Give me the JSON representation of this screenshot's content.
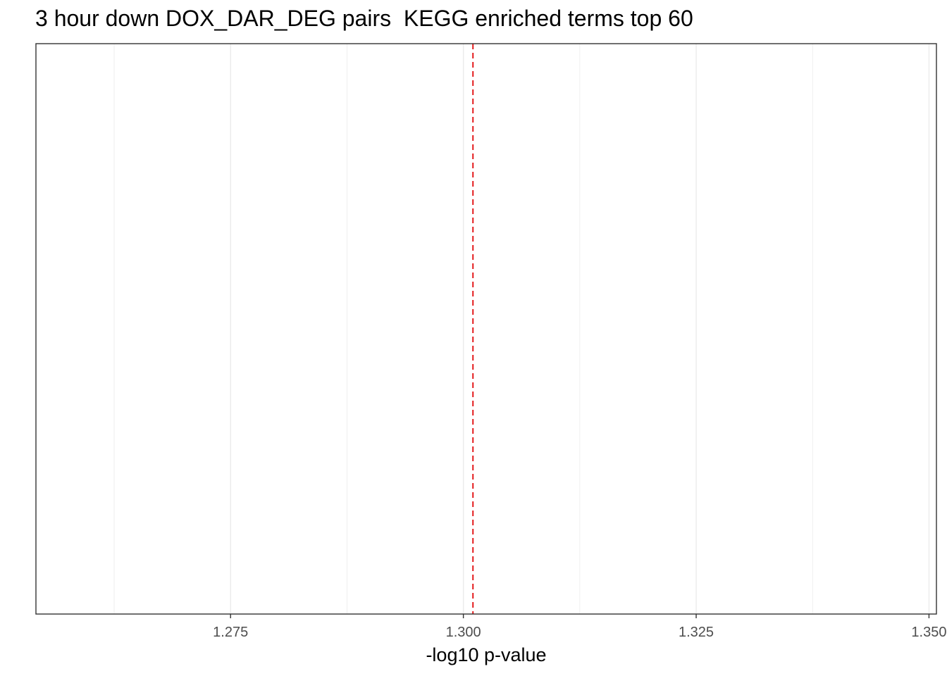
{
  "chart_data": {
    "type": "bar",
    "title": "3 hour down DOX_DAR_DEG pairs  KEGG enriched terms top 60",
    "xlabel": "-log10 p-value",
    "ylabel": "",
    "xlim": [
      1.2541,
      1.3508
    ],
    "x_ticks": [
      1.275,
      1.3,
      1.325,
      1.35
    ],
    "x_tick_labels": [
      "1.275",
      "1.300",
      "1.325",
      "1.350"
    ],
    "x_minor_ticks": [
      1.2625,
      1.2875,
      1.3125,
      1.3375
    ],
    "categories": [],
    "values": [],
    "reference_line": {
      "x": 1.30103,
      "style": "dashed",
      "color": "#e41a1c"
    },
    "grid": true,
    "legend": "none"
  }
}
